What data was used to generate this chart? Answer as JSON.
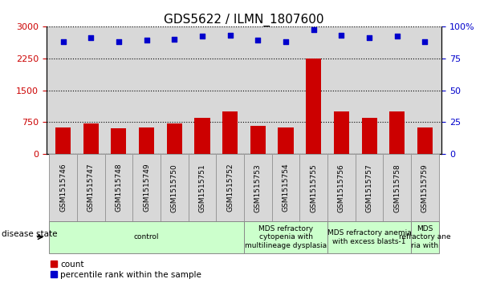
{
  "title": "GDS5622 / ILMN_1807600",
  "samples": [
    "GSM1515746",
    "GSM1515747",
    "GSM1515748",
    "GSM1515749",
    "GSM1515750",
    "GSM1515751",
    "GSM1515752",
    "GSM1515753",
    "GSM1515754",
    "GSM1515755",
    "GSM1515756",
    "GSM1515757",
    "GSM1515758",
    "GSM1515759"
  ],
  "counts": [
    620,
    720,
    610,
    625,
    720,
    850,
    1000,
    660,
    630,
    2250,
    1000,
    850,
    1000,
    630
  ],
  "percentiles": [
    88,
    91,
    88,
    89,
    90,
    92,
    93,
    89,
    88,
    97,
    93,
    91,
    92,
    88
  ],
  "bar_color": "#cc0000",
  "dot_color": "#0000cc",
  "ylim_left": [
    0,
    3000
  ],
  "ylim_right": [
    0,
    100
  ],
  "yticks_left": [
    0,
    750,
    1500,
    2250,
    3000
  ],
  "yticks_right": [
    0,
    25,
    50,
    75,
    100
  ],
  "disease_groups": [
    {
      "label": "control",
      "start": 0,
      "end": 7,
      "color": "#ccffcc"
    },
    {
      "label": "MDS refractory\ncytopenia with\nmultilineage dysplasia",
      "start": 7,
      "end": 10,
      "color": "#ccffcc"
    },
    {
      "label": "MDS refractory anemia\nwith excess blasts-1",
      "start": 10,
      "end": 13,
      "color": "#ccffcc"
    },
    {
      "label": "MDS\nrefractory ane\nria with",
      "start": 13,
      "end": 14,
      "color": "#ccffcc"
    }
  ],
  "tick_color_left": "#cc0000",
  "tick_color_right": "#0000cc",
  "panel_bg": "#d8d8d8",
  "grid_color": "#000000",
  "title_fontsize": 11,
  "axis_fontsize": 8,
  "bar_width": 0.55,
  "disease_state_label": "disease state",
  "legend_count": "count",
  "legend_pct": "percentile rank within the sample"
}
